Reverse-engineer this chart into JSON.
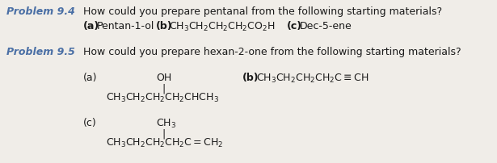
{
  "bg_color": "#f0ede8",
  "label_color": "#4a6fa5",
  "text_color": "#1a1a1a",
  "fontsize": 9.0,
  "fontfamily": "DejaVu Sans"
}
